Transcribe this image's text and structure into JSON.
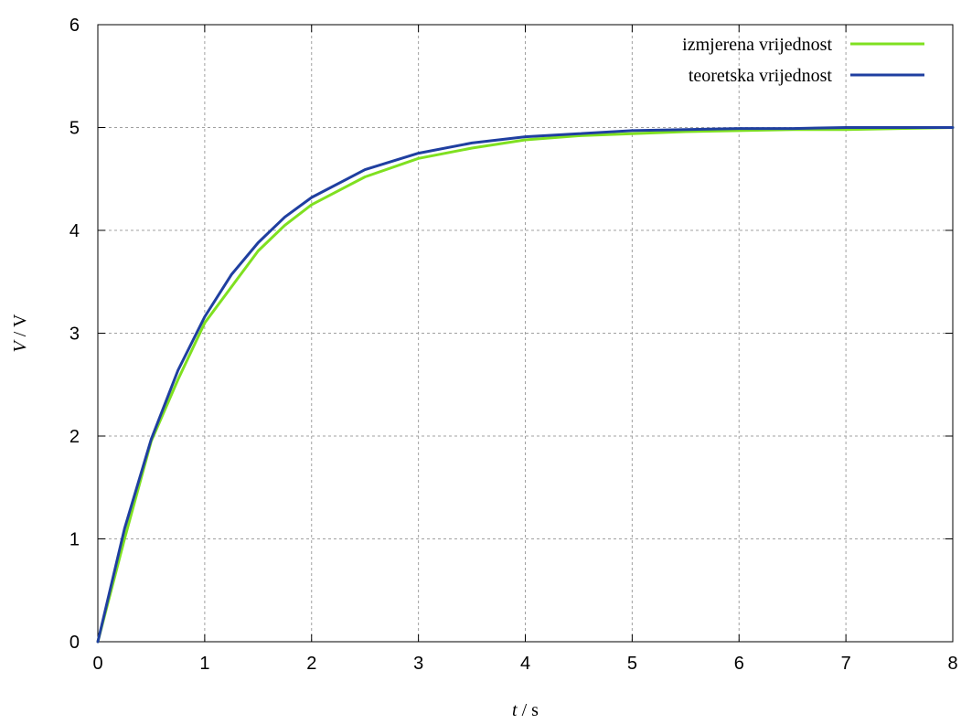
{
  "chart_data": {
    "type": "line",
    "xlabel": {
      "var": "t",
      "sep": " / ",
      "unit": "s"
    },
    "ylabel": {
      "var": "V",
      "sep": " / ",
      "unit": "V"
    },
    "xlim": [
      0,
      8
    ],
    "ylim": [
      0,
      6
    ],
    "xticks": [
      "0",
      "1",
      "2",
      "3",
      "4",
      "5",
      "6",
      "7",
      "8"
    ],
    "yticks": [
      "0",
      "1",
      "2",
      "3",
      "4",
      "5",
      "6"
    ],
    "grid": true,
    "legend_position": "top-right",
    "series": [
      {
        "name": "izmjerena vrijednost",
        "color": "#7fe020",
        "x": [
          0,
          0.25,
          0.5,
          0.75,
          1.0,
          1.25,
          1.5,
          1.75,
          2.0,
          2.5,
          3.0,
          3.5,
          4.0,
          4.5,
          5.0,
          5.5,
          6.0,
          6.5,
          7.0,
          7.5,
          8.0
        ],
        "y": [
          0,
          1.0,
          1.95,
          2.55,
          3.1,
          3.45,
          3.8,
          4.05,
          4.25,
          4.52,
          4.7,
          4.8,
          4.88,
          4.92,
          4.94,
          4.96,
          4.97,
          4.98,
          4.98,
          4.99,
          5.0
        ]
      },
      {
        "name": "teoretska vrijednost",
        "color": "#1f3fa0",
        "x": [
          0,
          0.25,
          0.5,
          0.75,
          1.0,
          1.25,
          1.5,
          1.75,
          2.0,
          2.5,
          3.0,
          3.5,
          4.0,
          4.5,
          5.0,
          5.5,
          6.0,
          6.5,
          7.0,
          7.5,
          8.0
        ],
        "y": [
          0,
          1.1,
          1.97,
          2.64,
          3.16,
          3.57,
          3.88,
          4.13,
          4.32,
          4.59,
          4.75,
          4.85,
          4.91,
          4.94,
          4.97,
          4.98,
          4.99,
          4.99,
          5.0,
          5.0,
          5.0
        ]
      }
    ]
  }
}
